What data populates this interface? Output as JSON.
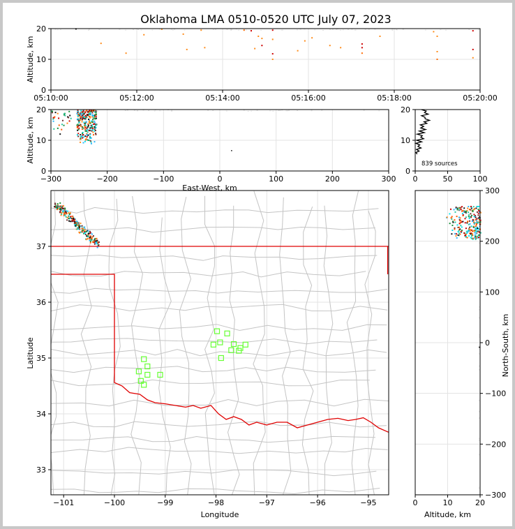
{
  "title": "Oklahoma LMA 0510-0520 UTC July 07, 2023",
  "chart_data": [
    {
      "id": "time-altitude",
      "type": "scatter",
      "ylabel": "Altitude, km",
      "xlim": [
        "05:10:00",
        "05:20:00"
      ],
      "ylim": [
        0,
        20
      ],
      "xticks": [
        "05:10:00",
        "05:12:00",
        "05:14:00",
        "05:16:00",
        "05:18:00",
        "05:20:00"
      ],
      "yticks": [
        "0",
        "10",
        "20"
      ],
      "grid": true,
      "points": [
        {
          "t": "05:10:35",
          "z": 19.9,
          "c": "#111111"
        },
        {
          "t": "05:11:10",
          "z": 15.2,
          "c": "#ff8c1a"
        },
        {
          "t": "05:11:45",
          "z": 12.0,
          "c": "#ff8c1a"
        },
        {
          "t": "05:12:10",
          "z": 18.0,
          "c": "#ff8c1a"
        },
        {
          "t": "05:12:35",
          "z": 19.8,
          "c": "#ff8c1a"
        },
        {
          "t": "05:13:05",
          "z": 18.2,
          "c": "#ff8c1a"
        },
        {
          "t": "05:13:10",
          "z": 13.2,
          "c": "#ff8c1a"
        },
        {
          "t": "05:13:30",
          "z": 19.5,
          "c": "#ff8c1a"
        },
        {
          "t": "05:13:35",
          "z": 13.8,
          "c": "#ff8c1a"
        },
        {
          "t": "05:14:30",
          "z": 19.5,
          "c": "#ff6a00"
        },
        {
          "t": "05:14:40",
          "z": 19.3,
          "c": "#cc0000"
        },
        {
          "t": "05:14:45",
          "z": 13.5,
          "c": "#ff8c1a"
        },
        {
          "t": "05:14:50",
          "z": 17.5,
          "c": "#ff8c1a"
        },
        {
          "t": "05:14:55",
          "z": 16.8,
          "c": "#ff8c1a"
        },
        {
          "t": "05:14:55",
          "z": 14.5,
          "c": "#cc0000"
        },
        {
          "t": "05:15:10",
          "z": 19.5,
          "c": "#cc0000"
        },
        {
          "t": "05:15:10",
          "z": 16.5,
          "c": "#ff8c1a"
        },
        {
          "t": "05:15:10",
          "z": 11.8,
          "c": "#cc0000"
        },
        {
          "t": "05:15:10",
          "z": 10.0,
          "c": "#ff8c1a"
        },
        {
          "t": "05:15:45",
          "z": 12.8,
          "c": "#ff8c1a"
        },
        {
          "t": "05:15:55",
          "z": 16.0,
          "c": "#ff8c1a"
        },
        {
          "t": "05:16:05",
          "z": 17.0,
          "c": "#ff8c1a"
        },
        {
          "t": "05:16:30",
          "z": 14.5,
          "c": "#ff8c1a"
        },
        {
          "t": "05:16:45",
          "z": 13.8,
          "c": "#ff8c1a"
        },
        {
          "t": "05:17:15",
          "z": 15.0,
          "c": "#cc0000"
        },
        {
          "t": "05:17:15",
          "z": 13.8,
          "c": "#cc0000"
        },
        {
          "t": "05:17:15",
          "z": 12.0,
          "c": "#ff6a00"
        },
        {
          "t": "05:17:40",
          "z": 17.5,
          "c": "#ff8c1a"
        },
        {
          "t": "05:18:55",
          "z": 19.0,
          "c": "#ff8c1a"
        },
        {
          "t": "05:19:00",
          "z": 17.5,
          "c": "#ff8c1a"
        },
        {
          "t": "05:19:00",
          "z": 12.5,
          "c": "#ff8c1a"
        },
        {
          "t": "05:19:00",
          "z": 10.0,
          "c": "#ff6a00"
        },
        {
          "t": "05:19:50",
          "z": 19.3,
          "c": "#cc0000"
        },
        {
          "t": "05:19:50",
          "z": 13.2,
          "c": "#cc0000"
        },
        {
          "t": "05:19:50",
          "z": 10.5,
          "c": "#ff8c1a"
        }
      ]
    },
    {
      "id": "ew-altitude",
      "type": "scatter",
      "xlabel": "East-West, km",
      "ylabel": "Altitude, km",
      "xlim": [
        -300,
        300
      ],
      "ylim": [
        0,
        20
      ],
      "xticks": [
        "−300",
        "−200",
        "−100",
        "0",
        "100",
        "200",
        "300"
      ],
      "yticks": [
        "0",
        "10",
        "20"
      ],
      "grid": true,
      "clusters": [
        {
          "x": [
            -255,
            -220
          ],
          "z": [
            9,
            20
          ],
          "n": 260
        },
        {
          "x": [
            -300,
            -262
          ],
          "z": [
            12,
            20
          ],
          "n": 30
        }
      ],
      "points": [
        {
          "x": 20,
          "z": 6.8,
          "c": "#111111"
        }
      ]
    },
    {
      "id": "altitude-histogram",
      "type": "line",
      "annotation": "839 sources",
      "xlim": [
        0,
        100
      ],
      "ylim": [
        0,
        20
      ],
      "xticks": [
        "0",
        "50",
        "100"
      ],
      "yticks": [
        "0",
        "10",
        "20"
      ],
      "grid": true,
      "profile": [
        {
          "z": 5.5,
          "n": 3
        },
        {
          "z": 6.5,
          "n": 6
        },
        {
          "z": 7.5,
          "n": 9
        },
        {
          "z": 8.5,
          "n": 7
        },
        {
          "z": 9.5,
          "n": 10
        },
        {
          "z": 10.5,
          "n": 13
        },
        {
          "z": 11.5,
          "n": 11
        },
        {
          "z": 12.5,
          "n": 14
        },
        {
          "z": 13.5,
          "n": 16
        },
        {
          "z": 14.5,
          "n": 13
        },
        {
          "z": 15.5,
          "n": 18
        },
        {
          "z": 16.5,
          "n": 22
        },
        {
          "z": 17.5,
          "n": 15
        },
        {
          "z": 18.5,
          "n": 20
        },
        {
          "z": 19.5,
          "n": 17
        }
      ]
    },
    {
      "id": "plan-view",
      "type": "scatter",
      "xlabel": "Longitude",
      "ylabel": "Latitude",
      "xlim": [
        -101.25,
        -94.6
      ],
      "ylim": [
        32.55,
        38.0
      ],
      "xticks": [
        "−101",
        "−100",
        "−99",
        "−98",
        "−97",
        "−96",
        "−95"
      ],
      "yticks": [
        "33",
        "34",
        "35",
        "36",
        "37"
      ],
      "grid": true,
      "clusters": [
        {
          "lon": [
            -101.15,
            -100.35
          ],
          "lat": [
            37.05,
            37.75
          ],
          "n": 240
        }
      ],
      "stations": [
        {
          "lon": -97.98,
          "lat": 35.48
        },
        {
          "lon": -97.78,
          "lat": 35.44
        },
        {
          "lon": -98.05,
          "lat": 35.24
        },
        {
          "lon": -97.92,
          "lat": 35.28
        },
        {
          "lon": -97.65,
          "lat": 35.25
        },
        {
          "lon": -97.52,
          "lat": 35.18
        },
        {
          "lon": -97.42,
          "lat": 35.24
        },
        {
          "lon": -97.7,
          "lat": 35.14
        },
        {
          "lon": -97.55,
          "lat": 35.13
        },
        {
          "lon": -97.9,
          "lat": 35.0
        },
        {
          "lon": -99.42,
          "lat": 34.98
        },
        {
          "lon": -99.35,
          "lat": 34.85
        },
        {
          "lon": -99.52,
          "lat": 34.76
        },
        {
          "lon": -99.35,
          "lat": 34.7
        },
        {
          "lon": -99.1,
          "lat": 34.7
        },
        {
          "lon": -99.48,
          "lat": 34.59
        },
        {
          "lon": -99.42,
          "lat": 34.52
        }
      ]
    },
    {
      "id": "altitude-ns",
      "type": "scatter",
      "xlabel": "Altitude, km",
      "ylabel": "North-South, km",
      "xlim": [
        0,
        20
      ],
      "ylim": [
        -300,
        300
      ],
      "xticks": [
        "0",
        "10",
        "20"
      ],
      "yticks": [
        "−300",
        "−200",
        "−100",
        "0",
        "100",
        "200",
        "300"
      ],
      "grid": true,
      "clusters": [
        {
          "z": [
            9,
            20
          ],
          "y": [
            205,
            270
          ],
          "n": 240
        }
      ],
      "points": [
        {
          "z": 19.8,
          "y": -8,
          "c": "#111111"
        }
      ]
    }
  ]
}
